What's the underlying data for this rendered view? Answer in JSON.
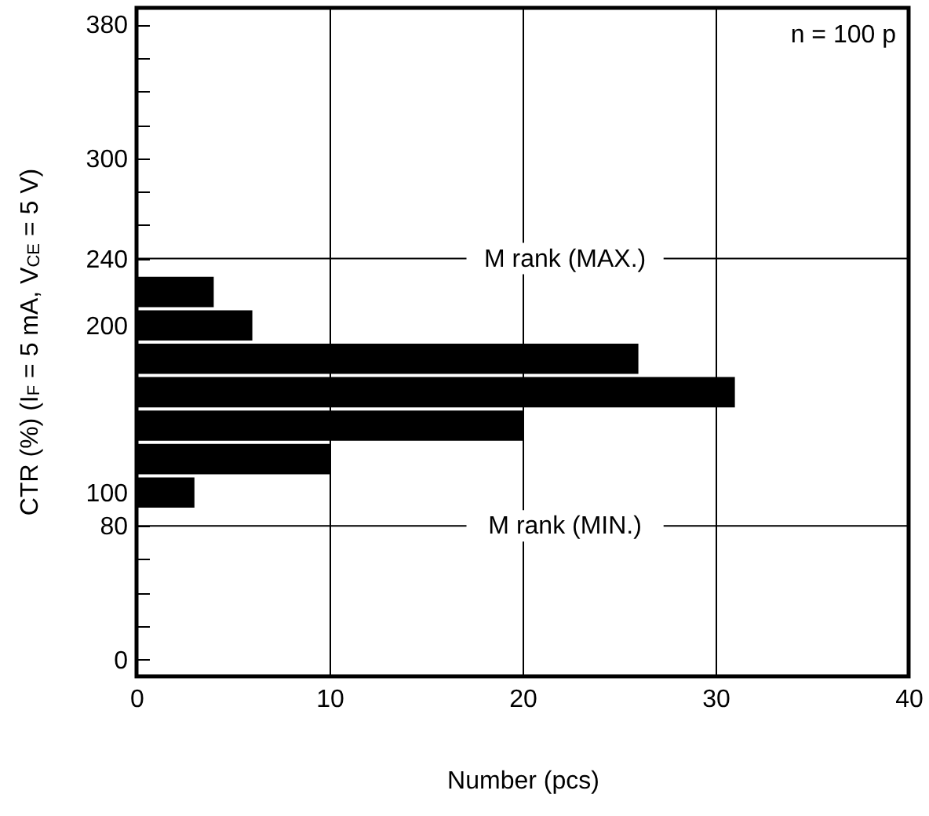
{
  "chart_data": {
    "type": "histogram",
    "orientation": "horizontal",
    "xlabel": "Number (pcs)",
    "ylabel": "CTR (%) (I$_{F}$ = 5 mA, V$_{CE}$ = 5 V)",
    "bins": [
      90,
      110,
      130,
      150,
      170,
      190,
      210,
      230
    ],
    "values": [
      3,
      10,
      20,
      31,
      26,
      6,
      4
    ],
    "color": "#000000",
    "xlim": [
      0,
      40
    ],
    "xticks": [
      0,
      10,
      20,
      30,
      40
    ],
    "ylim": [
      -10,
      390
    ],
    "yticks": [
      0,
      {
        "value": 20,
        "label": null
      },
      {
        "value": 40,
        "label": null
      },
      {
        "value": 60,
        "label": null
      },
      80,
      100,
      {
        "value": 120,
        "label": null
      },
      {
        "value": 140,
        "label": null
      },
      {
        "value": 160,
        "label": null
      },
      {
        "value": 180,
        "label": null
      },
      200,
      {
        "value": 220,
        "label": null
      },
      240,
      {
        "value": 260,
        "label": null
      },
      {
        "value": 280,
        "label": null
      },
      300,
      {
        "value": 320,
        "label": null
      },
      {
        "value": 340,
        "label": null
      },
      {
        "value": 360,
        "label": null
      },
      380
    ],
    "grid": "x",
    "ref_lines": [
      {
        "axis": "y",
        "value": 240,
        "label": "M rank (MAX.)"
      },
      {
        "axis": "y",
        "value": 80,
        "label": "M rank (MIN.)"
      }
    ],
    "annotations": [
      "n = 100 p"
    ]
  }
}
